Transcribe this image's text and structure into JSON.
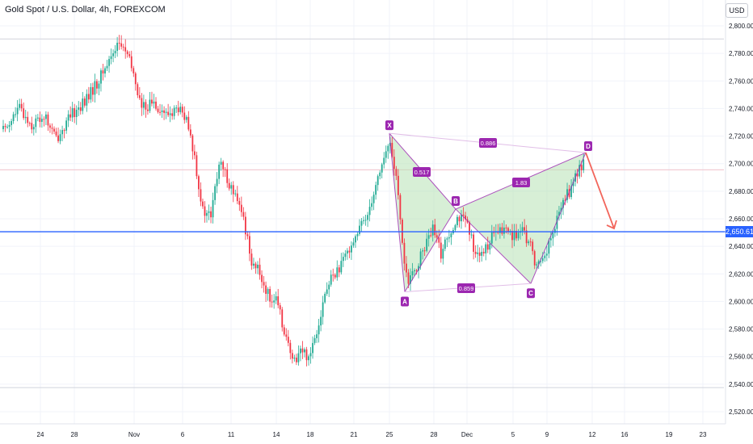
{
  "header": {
    "symbol_title": "Gold Spot / U.S. Dollar, 4h, FOREXCOM",
    "currency": "USD"
  },
  "colors": {
    "up": "#22ab94",
    "down": "#f23645",
    "price_line": "#2962ff",
    "pattern_fill": "#b7e1b5",
    "pattern_edge": "#9c27b0",
    "projection_arrow": "#f2655b",
    "grid": "#f0f3fa"
  },
  "chart_data": {
    "type": "candlestick",
    "y_axis_ticks": [
      "2,800.00",
      "2,780.00",
      "2,760.00",
      "2,740.00",
      "2,720.00",
      "2,700.00",
      "2,680.00",
      "2,660.00",
      "2,640.00",
      "2,620.00",
      "2,600.00",
      "2,580.00",
      "2,560.00",
      "2,540.00",
      "2,520.00"
    ],
    "y_tick_values": [
      2800,
      2780,
      2760,
      2740,
      2720,
      2700,
      2680,
      2660,
      2640,
      2620,
      2600,
      2580,
      2560,
      2540,
      2520
    ],
    "ylim": [
      2515,
      2805
    ],
    "x_axis_ticks": [
      "24",
      "28",
      "Nov",
      "6",
      "11",
      "14",
      "18",
      "21",
      "25",
      "28",
      "Dec",
      "5",
      "9",
      "12",
      "16",
      "19",
      "23"
    ],
    "current_price": {
      "label": "2,650.61",
      "value": 2650.61
    },
    "reference_lines": [
      2790.5,
      2695.5,
      2537.5
    ],
    "price_path": [
      {
        "i": 0,
        "v": 2725
      },
      {
        "i": 8,
        "v": 2740
      },
      {
        "i": 14,
        "v": 2728
      },
      {
        "i": 20,
        "v": 2735
      },
      {
        "i": 26,
        "v": 2718
      },
      {
        "i": 34,
        "v": 2736
      },
      {
        "i": 40,
        "v": 2745
      },
      {
        "i": 46,
        "v": 2758
      },
      {
        "i": 52,
        "v": 2775
      },
      {
        "i": 56,
        "v": 2788
      },
      {
        "i": 60,
        "v": 2782
      },
      {
        "i": 64,
        "v": 2765
      },
      {
        "i": 68,
        "v": 2740
      },
      {
        "i": 74,
        "v": 2745
      },
      {
        "i": 80,
        "v": 2735
      },
      {
        "i": 86,
        "v": 2740
      },
      {
        "i": 90,
        "v": 2730
      },
      {
        "i": 94,
        "v": 2705
      },
      {
        "i": 98,
        "v": 2665
      },
      {
        "i": 102,
        "v": 2662
      },
      {
        "i": 106,
        "v": 2700
      },
      {
        "i": 110,
        "v": 2690
      },
      {
        "i": 114,
        "v": 2675
      },
      {
        "i": 118,
        "v": 2660
      },
      {
        "i": 122,
        "v": 2630
      },
      {
        "i": 126,
        "v": 2620
      },
      {
        "i": 130,
        "v": 2605
      },
      {
        "i": 134,
        "v": 2600
      },
      {
        "i": 138,
        "v": 2580
      },
      {
        "i": 142,
        "v": 2555
      },
      {
        "i": 146,
        "v": 2565
      },
      {
        "i": 150,
        "v": 2560
      },
      {
        "i": 154,
        "v": 2580
      },
      {
        "i": 158,
        "v": 2605
      },
      {
        "i": 162,
        "v": 2620
      },
      {
        "i": 166,
        "v": 2625
      },
      {
        "i": 170,
        "v": 2640
      },
      {
        "i": 174,
        "v": 2650
      },
      {
        "i": 178,
        "v": 2660
      },
      {
        "i": 182,
        "v": 2680
      },
      {
        "i": 186,
        "v": 2700
      },
      {
        "i": 190,
        "v": 2715
      },
      {
        "i": 193,
        "v": 2690
      },
      {
        "i": 196,
        "v": 2640
      },
      {
        "i": 199,
        "v": 2612
      },
      {
        "i": 203,
        "v": 2625
      },
      {
        "i": 207,
        "v": 2640
      },
      {
        "i": 211,
        "v": 2652
      },
      {
        "i": 215,
        "v": 2635
      },
      {
        "i": 219,
        "v": 2650
      },
      {
        "i": 223,
        "v": 2662
      },
      {
        "i": 227,
        "v": 2658
      },
      {
        "i": 231,
        "v": 2640
      },
      {
        "i": 235,
        "v": 2632
      },
      {
        "i": 239,
        "v": 2645
      },
      {
        "i": 243,
        "v": 2650
      },
      {
        "i": 247,
        "v": 2652
      },
      {
        "i": 251,
        "v": 2648
      },
      {
        "i": 255,
        "v": 2650
      },
      {
        "i": 259,
        "v": 2640
      },
      {
        "i": 262,
        "v": 2625
      },
      {
        "i": 266,
        "v": 2635
      },
      {
        "i": 270,
        "v": 2648
      },
      {
        "i": 274,
        "v": 2670
      },
      {
        "i": 278,
        "v": 2680
      },
      {
        "i": 282,
        "v": 2692
      },
      {
        "i": 285,
        "v": 2703
      }
    ],
    "harmonic_pattern": {
      "points": [
        {
          "label": "X",
          "x_tick_pos": "Nov 25",
          "value": 2722
        },
        {
          "label": "A",
          "value": 2607
        },
        {
          "label": "B",
          "value": 2667
        },
        {
          "label": "C",
          "value": 2613
        },
        {
          "label": "D",
          "value": 2708
        }
      ],
      "ratios": [
        {
          "label": "0.517",
          "between": "X-B"
        },
        {
          "label": "0.886",
          "between": "X-D"
        },
        {
          "label": "1.83",
          "between": "B-D"
        },
        {
          "label": "0.859",
          "between": "A-C"
        }
      ]
    },
    "projection_target": 2653
  }
}
